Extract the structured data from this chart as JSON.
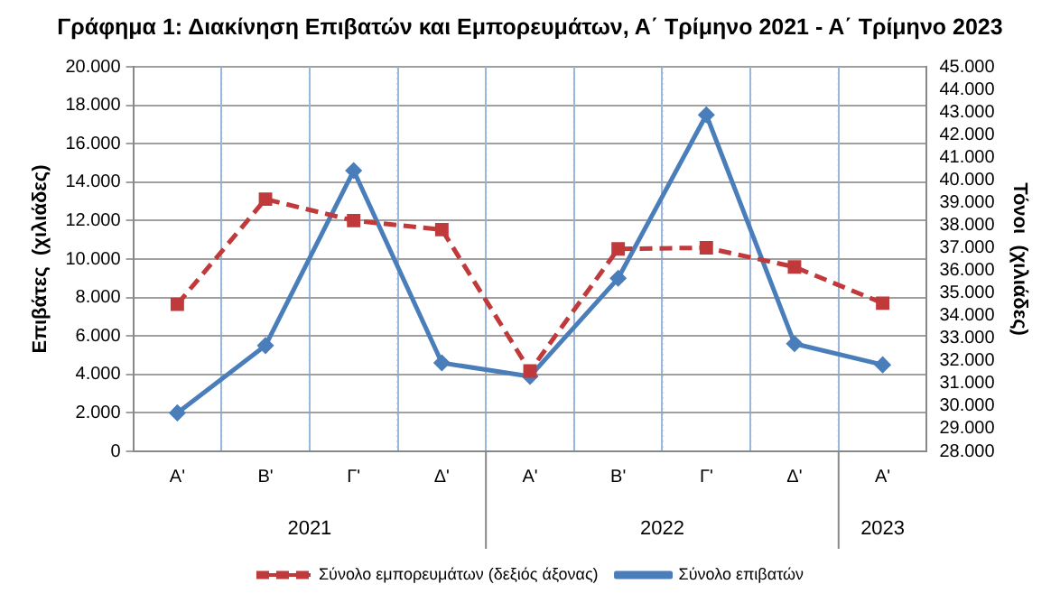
{
  "chart_data": {
    "type": "line",
    "title": "Γράφημα 1: Διακίνηση Επιβατών και Εμπορευμάτων, Α΄ Τρίμηνο 2021 - Α΄ Τρίμηνο 2023",
    "ylabel": "Επιβάτες  (χιλιάδες)",
    "y2label": "Τόνοι  (χιλιάδες)",
    "categories": [
      "Α'",
      "Β'",
      "Γ'",
      "Δ'",
      "Α'",
      "Β'",
      "Γ'",
      "Δ'",
      "Α'"
    ],
    "annotations": [
      "2021",
      "2022",
      "2023"
    ],
    "series": [
      {
        "name": "Σύνολο επιβατών",
        "color": "#4a7ebb",
        "marker": "diamond",
        "line_style": "solid",
        "values": [
          2000,
          5500,
          14600,
          4600,
          3900,
          9000,
          17500,
          5600,
          4500
        ]
      },
      {
        "name": "Σύνολο εμπορευμάτων (δεξιός άξονας)",
        "color": "#c0393b",
        "marker": "square",
        "line_style": "dashed",
        "axis": "y2",
        "values": [
          34500,
          39150,
          38200,
          37800,
          31550,
          36950,
          37000,
          36150,
          34550
        ]
      }
    ],
    "ylim": [
      0,
      20000
    ],
    "yticks": [
      {
        "value": 0,
        "label": "0"
      },
      {
        "value": 2000,
        "label": "2.000"
      },
      {
        "value": 4000,
        "label": "4.000"
      },
      {
        "value": 6000,
        "label": "6.000"
      },
      {
        "value": 8000,
        "label": "8.000"
      },
      {
        "value": 10000,
        "label": "10.000"
      },
      {
        "value": 12000,
        "label": "12.000"
      },
      {
        "value": 14000,
        "label": "14.000"
      },
      {
        "value": 16000,
        "label": "16.000"
      },
      {
        "value": 18000,
        "label": "18.000"
      },
      {
        "value": 20000,
        "label": "20.000"
      }
    ],
    "y2lim": [
      28000,
      45000
    ],
    "y2ticks": [
      {
        "value": 28000,
        "label": "28.000"
      },
      {
        "value": 29000,
        "label": "29.000"
      },
      {
        "value": 30000,
        "label": "30.000"
      },
      {
        "value": 31000,
        "label": "31.000"
      },
      {
        "value": 32000,
        "label": "32.000"
      },
      {
        "value": 33000,
        "label": "33.000"
      },
      {
        "value": 34000,
        "label": "34.000"
      },
      {
        "value": 35000,
        "label": "35.000"
      },
      {
        "value": 36000,
        "label": "36.000"
      },
      {
        "value": 37000,
        "label": "37.000"
      },
      {
        "value": 38000,
        "label": "38.000"
      },
      {
        "value": 39000,
        "label": "39.000"
      },
      {
        "value": 40000,
        "label": "40.000"
      },
      {
        "value": 41000,
        "label": "41.000"
      },
      {
        "value": 42000,
        "label": "42.000"
      },
      {
        "value": 43000,
        "label": "43.000"
      },
      {
        "value": 44000,
        "label": "44.000"
      },
      {
        "value": 45000,
        "label": "45.000"
      }
    ],
    "grid": true,
    "legend": "bottom"
  }
}
